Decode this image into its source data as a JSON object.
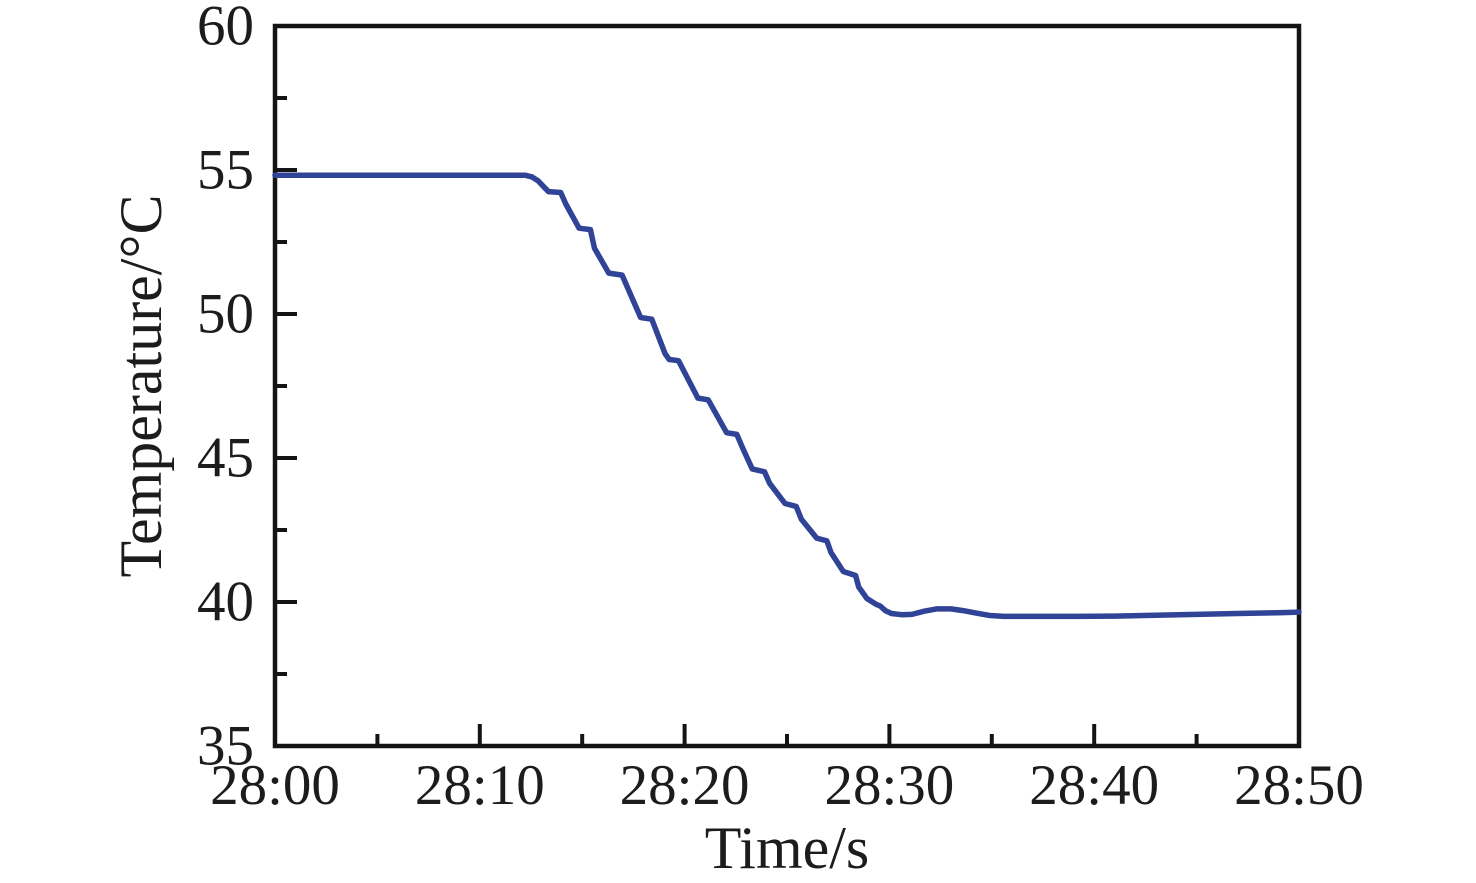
{
  "figure": {
    "background": "#ffffff",
    "axis_color": "#141414",
    "text_color": "#1c1c1c"
  },
  "chart_data": {
    "type": "line",
    "title": "",
    "xlabel": "Time/s",
    "ylabel": "Temperature/°C",
    "grid": false,
    "legend": "none",
    "x_unit": "mm:ss",
    "xlim_seconds": [
      0,
      50
    ],
    "ylim": [
      35,
      60
    ],
    "x_major_ticks": [
      {
        "t": 0,
        "label": "28:00"
      },
      {
        "t": 10,
        "label": "28:10"
      },
      {
        "t": 20,
        "label": "28:20"
      },
      {
        "t": 30,
        "label": "28:30"
      },
      {
        "t": 40,
        "label": "28:40"
      },
      {
        "t": 50,
        "label": "28:50"
      }
    ],
    "x_minor_ticks_seconds": [
      5,
      15,
      25,
      35,
      45
    ],
    "y_major_ticks": [
      {
        "v": 35,
        "label": "35"
      },
      {
        "v": 40,
        "label": "40"
      },
      {
        "v": 45,
        "label": "45"
      },
      {
        "v": 50,
        "label": "50"
      },
      {
        "v": 55,
        "label": "55"
      },
      {
        "v": 60,
        "label": "60"
      }
    ],
    "y_minor_ticks": [
      37.5,
      42.5,
      47.5,
      52.5,
      57.5
    ],
    "series": [
      {
        "name": "temperature",
        "color": "#2f4397",
        "points": [
          [
            0,
            54.82
          ],
          [
            3,
            54.82
          ],
          [
            6,
            54.82
          ],
          [
            9,
            54.82
          ],
          [
            11,
            54.82
          ],
          [
            12.2,
            54.82
          ],
          [
            12.55,
            54.76
          ],
          [
            12.85,
            54.62
          ],
          [
            13.05,
            54.47
          ],
          [
            13.35,
            54.25
          ],
          [
            13.95,
            54.22
          ],
          [
            14.2,
            53.82
          ],
          [
            14.85,
            52.98
          ],
          [
            15.4,
            52.93
          ],
          [
            15.6,
            52.28
          ],
          [
            16.3,
            51.42
          ],
          [
            16.95,
            51.35
          ],
          [
            17.85,
            49.88
          ],
          [
            18.4,
            49.82
          ],
          [
            19.05,
            48.62
          ],
          [
            19.25,
            48.42
          ],
          [
            19.7,
            48.38
          ],
          [
            20.65,
            47.08
          ],
          [
            21.15,
            47.02
          ],
          [
            22.05,
            45.88
          ],
          [
            22.55,
            45.82
          ],
          [
            22.85,
            45.32
          ],
          [
            23.3,
            44.62
          ],
          [
            23.9,
            44.52
          ],
          [
            24.15,
            44.12
          ],
          [
            24.9,
            43.42
          ],
          [
            25.45,
            43.32
          ],
          [
            25.7,
            42.88
          ],
          [
            26.45,
            42.22
          ],
          [
            26.95,
            42.12
          ],
          [
            27.15,
            41.72
          ],
          [
            27.75,
            41.06
          ],
          [
            28.35,
            40.92
          ],
          [
            28.5,
            40.52
          ],
          [
            28.9,
            40.12
          ],
          [
            29.35,
            39.92
          ],
          [
            29.55,
            39.86
          ],
          [
            29.8,
            39.7
          ],
          [
            30.1,
            39.6
          ],
          [
            30.6,
            39.56
          ],
          [
            31.1,
            39.57
          ],
          [
            31.7,
            39.68
          ],
          [
            32.3,
            39.76
          ],
          [
            33.0,
            39.76
          ],
          [
            33.6,
            39.7
          ],
          [
            34.2,
            39.62
          ],
          [
            34.9,
            39.53
          ],
          [
            35.6,
            39.5
          ],
          [
            37,
            39.5
          ],
          [
            39,
            39.5
          ],
          [
            41,
            39.51
          ],
          [
            43,
            39.54
          ],
          [
            45,
            39.57
          ],
          [
            47,
            39.6
          ],
          [
            49,
            39.63
          ],
          [
            50,
            39.65
          ]
        ]
      }
    ]
  }
}
